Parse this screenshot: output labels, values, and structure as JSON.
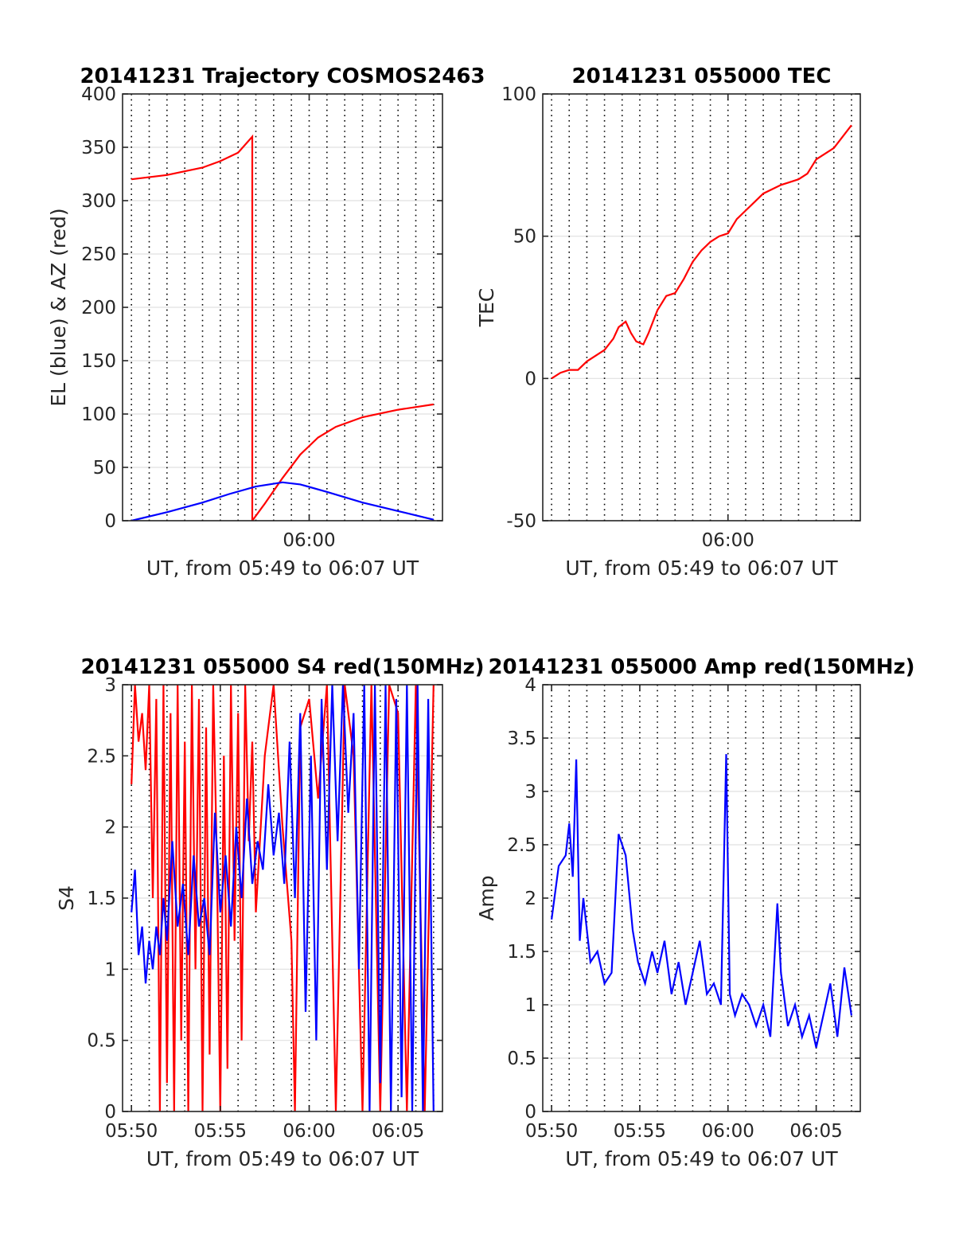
{
  "chart_data": [
    {
      "id": "traj",
      "type": "line",
      "title": "20141231 Trajectory COSMOS2463",
      "xlabel": "UT, from 05:49 to 06:07 UT",
      "ylabel": "EL (blue) & AZ (red)",
      "xlim_min": [
        -0.5,
        17.5
      ],
      "ylim": [
        0,
        400
      ],
      "yticks": [
        0,
        50,
        100,
        150,
        200,
        250,
        300,
        350,
        400
      ],
      "xticks": [
        {
          "v": 10,
          "label": "06:00"
        }
      ],
      "grid": true,
      "series": [
        {
          "color": "#ff0000",
          "x": [
            0,
            2,
            4,
            5,
            6,
            6.8,
            6.8,
            7.5,
            8.5,
            9.5,
            10.5,
            11.5,
            13,
            15,
            17
          ],
          "y": [
            320,
            324,
            331,
            337,
            345,
            360,
            0,
            16,
            40,
            62,
            78,
            88,
            97,
            104,
            109
          ]
        },
        {
          "color": "#0000ff",
          "x": [
            0,
            2,
            4,
            5.5,
            7,
            8.5,
            9.5,
            11,
            13,
            15,
            17
          ],
          "y": [
            0,
            8,
            17,
            25,
            32,
            36,
            34,
            27,
            17,
            9,
            1
          ]
        }
      ]
    },
    {
      "id": "tec",
      "type": "line",
      "title": "20141231 055000 TEC",
      "xlabel": "UT, from 05:49 to 06:07 UT",
      "ylabel": "TEC",
      "xlim_min": [
        -0.5,
        17.5
      ],
      "ylim": [
        -50,
        100
      ],
      "yticks": [
        -50,
        0,
        50,
        100
      ],
      "xticks": [
        {
          "v": 10,
          "label": "06:00"
        }
      ],
      "grid": true,
      "series": [
        {
          "color": "#ff0000",
          "x": [
            0,
            0.5,
            1,
            1.5,
            2,
            3,
            3.5,
            3.8,
            4.2,
            4.5,
            4.8,
            5.2,
            5.5,
            6,
            6.5,
            7,
            7.5,
            8,
            8.5,
            9,
            9.5,
            10,
            10.5,
            11,
            11.5,
            12,
            13,
            13.5,
            14,
            14.5,
            15,
            16,
            17
          ],
          "y": [
            0,
            2,
            3,
            3,
            6,
            10,
            14,
            18,
            20,
            16,
            13,
            12,
            16,
            24,
            29,
            30,
            35,
            41,
            45,
            48,
            50,
            51,
            56,
            59,
            62,
            65,
            68,
            69,
            70,
            72,
            77,
            81,
            89
          ]
        }
      ]
    },
    {
      "id": "s4",
      "type": "line",
      "title": "20141231 055000 S4 red(150MHz)",
      "xlabel": "UT, from 05:49 to 06:07 UT",
      "ylabel": "S4",
      "xlim_min": [
        -0.5,
        17.5
      ],
      "ylim": [
        0,
        3
      ],
      "yticks": [
        0,
        0.5,
        1,
        1.5,
        2,
        2.5,
        3
      ],
      "xticks": [
        {
          "v": 0,
          "label": "05:50"
        },
        {
          "v": 5,
          "label": "05:55"
        },
        {
          "v": 10,
          "label": "06:00"
        },
        {
          "v": 15,
          "label": "06:05"
        }
      ],
      "grid": true,
      "series": [
        {
          "color": "#ff0000",
          "x": [
            0,
            0.2,
            0.4,
            0.6,
            0.8,
            1.0,
            1.2,
            1.4,
            1.6,
            1.8,
            2.0,
            2.2,
            2.4,
            2.6,
            2.8,
            3.0,
            3.2,
            3.4,
            3.6,
            3.8,
            4.0,
            4.2,
            4.4,
            4.6,
            4.8,
            5.0,
            5.2,
            5.4,
            5.6,
            5.8,
            6.0,
            6.2,
            6.4,
            6.6,
            6.8,
            7.0,
            7.5,
            8.0,
            8.5,
            9.0,
            9.2,
            9.5,
            10.0,
            10.5,
            11.0,
            11.5,
            12.0,
            12.5,
            13.0,
            13.5,
            14.0,
            14.5,
            15.0,
            15.5,
            16.0,
            16.5,
            17.0
          ],
          "y": [
            2.3,
            3.0,
            2.6,
            2.8,
            2.4,
            3.0,
            1.5,
            2.9,
            0,
            3.0,
            0.2,
            2.8,
            0,
            3.0,
            0.5,
            2.6,
            0,
            3.0,
            1.0,
            2.9,
            0,
            2.7,
            0.4,
            3.0,
            1.8,
            0,
            2.5,
            0.3,
            3.0,
            1.2,
            2.8,
            0.5,
            3.0,
            1.9,
            2.6,
            1.4,
            2.5,
            3.0,
            2.0,
            1.2,
            0,
            2.7,
            2.9,
            2.2,
            3.0,
            0,
            3.0,
            2.5,
            0,
            3.0,
            0,
            3.0,
            2.8,
            0,
            3.0,
            0,
            3.0
          ]
        },
        {
          "color": "#0000ff",
          "x": [
            0,
            0.2,
            0.4,
            0.6,
            0.8,
            1.0,
            1.2,
            1.4,
            1.6,
            1.8,
            2.0,
            2.3,
            2.6,
            2.9,
            3.2,
            3.5,
            3.8,
            4.1,
            4.4,
            4.7,
            5.0,
            5.3,
            5.6,
            5.9,
            6.2,
            6.5,
            6.8,
            7.1,
            7.4,
            7.7,
            8.0,
            8.3,
            8.6,
            8.9,
            9.2,
            9.5,
            9.8,
            10.1,
            10.4,
            10.7,
            11.0,
            11.3,
            11.6,
            11.9,
            12.2,
            12.5,
            12.8,
            13.1,
            13.4,
            13.7,
            14.0,
            14.3,
            14.6,
            14.9,
            15.2,
            15.5,
            15.8,
            16.1,
            16.4,
            16.7,
            17.0
          ],
          "y": [
            1.4,
            1.7,
            1.1,
            1.3,
            0.9,
            1.2,
            1.0,
            1.3,
            1.1,
            1.5,
            1.2,
            1.9,
            1.3,
            1.6,
            1.1,
            1.8,
            1.3,
            1.5,
            1.1,
            2.1,
            1.4,
            1.8,
            1.3,
            2.0,
            1.5,
            2.2,
            1.6,
            1.9,
            1.7,
            2.3,
            1.8,
            2.1,
            1.6,
            2.6,
            1.5,
            2.8,
            0.7,
            2.5,
            0.5,
            2.9,
            1.7,
            3.0,
            1.9,
            3.0,
            2.1,
            2.8,
            1.0,
            3.0,
            0,
            3.0,
            0.2,
            3.0,
            0,
            2.9,
            0.1,
            3.0,
            0,
            3.0,
            0,
            2.9,
            0
          ]
        }
      ]
    },
    {
      "id": "amp",
      "type": "line",
      "title": "20141231 055000 Amp red(150MHz)",
      "xlabel": "UT, from 05:49 to 06:07 UT",
      "ylabel": "Amp",
      "xlim_min": [
        -0.5,
        17.5
      ],
      "ylim": [
        0,
        4
      ],
      "yticks": [
        0,
        0.5,
        1,
        1.5,
        2,
        2.5,
        3,
        3.5,
        4
      ],
      "xticks": [
        {
          "v": 0,
          "label": "05:50"
        },
        {
          "v": 5,
          "label": "05:55"
        },
        {
          "v": 10,
          "label": "06:00"
        },
        {
          "v": 15,
          "label": "06:05"
        }
      ],
      "grid": true,
      "series": [
        {
          "color": "#0000ff",
          "x": [
            0,
            0.4,
            0.8,
            1.0,
            1.2,
            1.4,
            1.6,
            1.8,
            2.2,
            2.6,
            3.0,
            3.4,
            3.8,
            4.2,
            4.6,
            4.9,
            5.3,
            5.7,
            6.0,
            6.4,
            6.8,
            7.2,
            7.6,
            8.0,
            8.4,
            8.8,
            9.2,
            9.6,
            9.9,
            10.1,
            10.4,
            10.8,
            11.2,
            11.6,
            12.0,
            12.4,
            12.8,
            13.0,
            13.4,
            13.8,
            14.2,
            14.6,
            15.0,
            15.4,
            15.8,
            16.2,
            16.6,
            17.0
          ],
          "y": [
            1.8,
            2.3,
            2.4,
            2.7,
            2.2,
            3.3,
            1.6,
            2.0,
            1.4,
            1.5,
            1.2,
            1.3,
            2.6,
            2.4,
            1.7,
            1.4,
            1.2,
            1.5,
            1.3,
            1.6,
            1.1,
            1.4,
            1.0,
            1.3,
            1.6,
            1.1,
            1.2,
            1.0,
            3.35,
            1.1,
            0.9,
            1.1,
            1.0,
            0.8,
            1.0,
            0.7,
            1.95,
            1.3,
            0.8,
            1.0,
            0.7,
            0.9,
            0.6,
            0.9,
            1.2,
            0.7,
            1.35,
            0.9
          ]
        }
      ]
    }
  ]
}
